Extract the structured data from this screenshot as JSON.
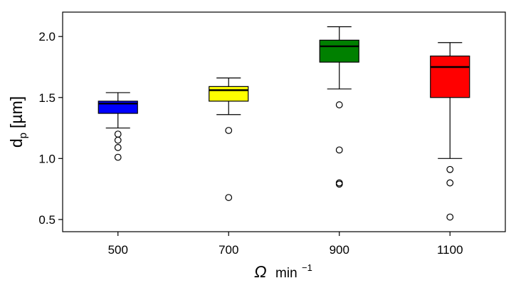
{
  "chart_data": {
    "type": "box",
    "xlabel": {
      "symbol": "Ω",
      "unit": "min",
      "exponent": "−1"
    },
    "ylabel": {
      "base": "d",
      "subscript": "p",
      "unit": "[µm]"
    },
    "ylim": [
      0.4,
      2.2
    ],
    "yticks": [
      0.5,
      1.0,
      1.5,
      2.0
    ],
    "ytick_labels": [
      "0.5",
      "1.0",
      "1.5",
      "2.0"
    ],
    "grid": false,
    "categories": [
      "500",
      "700",
      "900",
      "1100"
    ],
    "boxes": [
      {
        "category": "500",
        "color": "#0000ff",
        "q1": 1.37,
        "median": 1.45,
        "q3": 1.47,
        "whisker_low": 1.25,
        "whisker_high": 1.54,
        "outliers": [
          1.2,
          1.15,
          1.09,
          1.01
        ]
      },
      {
        "category": "700",
        "color": "#ffff00",
        "q1": 1.47,
        "median": 1.56,
        "q3": 1.59,
        "whisker_low": 1.36,
        "whisker_high": 1.66,
        "outliers": [
          1.23,
          0.68
        ]
      },
      {
        "category": "900",
        "color": "#008000",
        "q1": 1.79,
        "median": 1.92,
        "q3": 1.97,
        "whisker_low": 1.57,
        "whisker_high": 2.08,
        "outliers": [
          1.44,
          1.07,
          0.8,
          0.79
        ]
      },
      {
        "category": "1100",
        "color": "#ff0000",
        "q1": 1.5,
        "median": 1.75,
        "q3": 1.84,
        "whisker_low": 1.0,
        "whisker_high": 1.95,
        "outliers": [
          0.91,
          0.8,
          0.52
        ]
      }
    ]
  }
}
